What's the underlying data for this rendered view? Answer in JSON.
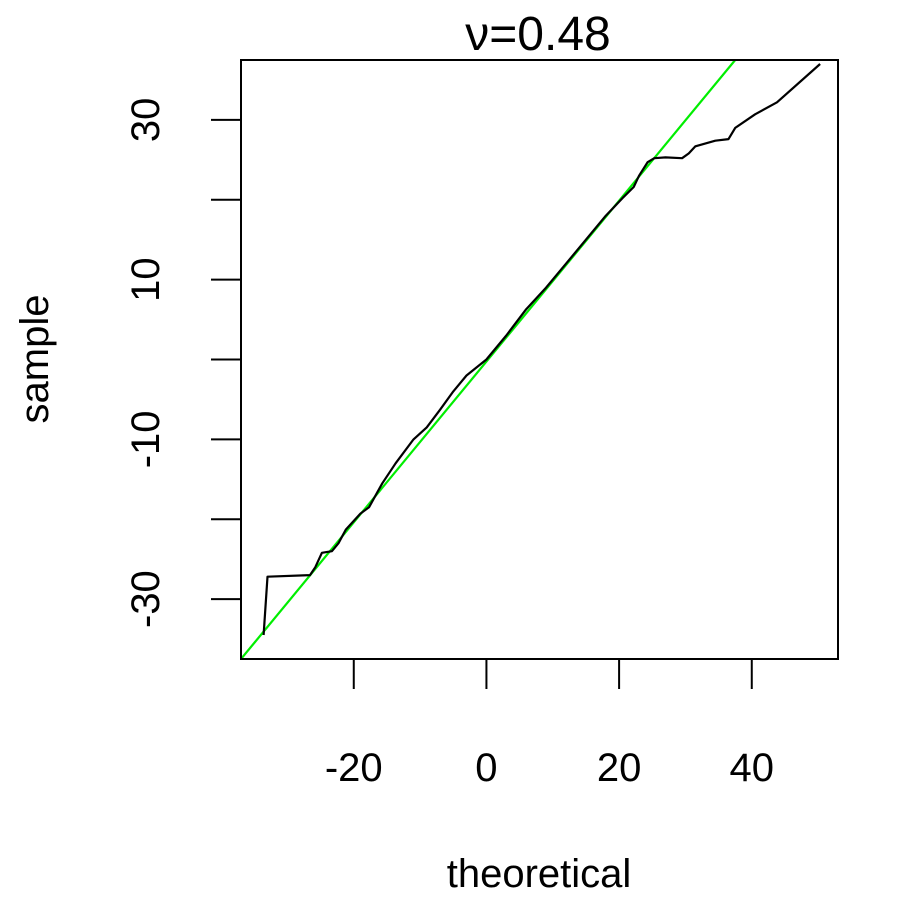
{
  "chart_data": {
    "type": "line",
    "title": "ν=0.48",
    "xlabel": "theoretical",
    "ylabel": "sample",
    "xlim": [
      -37,
      53
    ],
    "ylim": [
      -37.5,
      37.5
    ],
    "xticks": [
      -20,
      0,
      20,
      40
    ],
    "xtick_labels": [
      "-20",
      "0",
      "20",
      "40"
    ],
    "yticks": [
      -30,
      -20,
      -10,
      0,
      10,
      20,
      30
    ],
    "ytick_labels": [
      "-30",
      "",
      "-10",
      "",
      "10",
      "",
      "30"
    ],
    "grid": false,
    "series": [
      {
        "color": "#000000",
        "x": [
          -33.6,
          -33.0,
          -26.6,
          -25.8,
          -24.8,
          -23.3,
          -22.3,
          -21.2,
          -19.0,
          -17.7,
          -15.7,
          -13.7,
          -11.0,
          -9.0,
          -7.0,
          -5.0,
          -3.0,
          0.0,
          3.0,
          6.0,
          9.0,
          12.0,
          15.0,
          18.0,
          20.5,
          22.2,
          23.0,
          24.3,
          25.3,
          27.0,
          29.5,
          30.5,
          31.5,
          34.5,
          36.5,
          37.5,
          40.5,
          43.8,
          50.3
        ],
        "y": [
          -34.5,
          -27.2,
          -27.0,
          -26.0,
          -24.2,
          -24.0,
          -23.0,
          -21.3,
          -19.3,
          -18.5,
          -15.5,
          -13.0,
          -10.0,
          -8.5,
          -6.3,
          -4.0,
          -2.0,
          0.0,
          3.0,
          6.3,
          9.0,
          12.0,
          15.0,
          18.0,
          20.2,
          21.6,
          23.0,
          24.7,
          25.2,
          25.3,
          25.2,
          25.8,
          26.7,
          27.4,
          27.6,
          29.0,
          30.7,
          32.2,
          37.0
        ]
      },
      {
        "color": "#00ee00",
        "x": [
          -37,
          37.5
        ],
        "y": [
          -37.5,
          37.5
        ]
      }
    ]
  }
}
